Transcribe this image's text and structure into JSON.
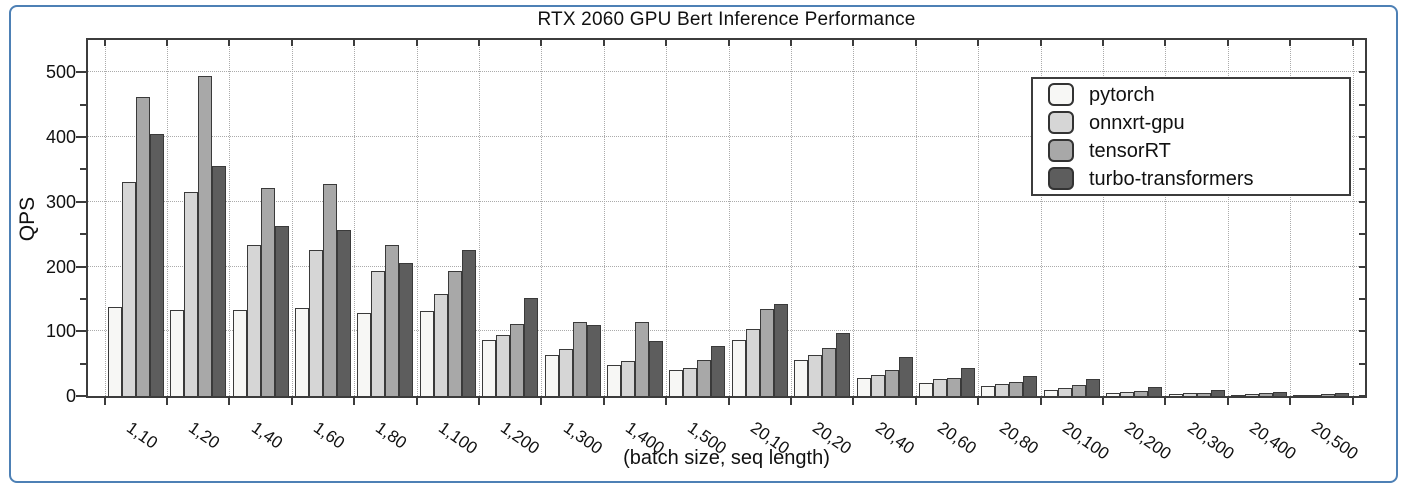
{
  "frame": {
    "border_color": "#4d80b5",
    "background": "#ffffff"
  },
  "chart_data": {
    "type": "bar",
    "title": "RTX 2060 GPU Bert Inference Performance",
    "xlabel": "(batch size, seq length)",
    "ylabel": "QPS",
    "ylim": [
      0,
      550
    ],
    "yticks": [
      0,
      100,
      200,
      300,
      400,
      500
    ],
    "yminor_step": 50,
    "grid": "dotted gray; horizontal lines at 100-unit majors, vertical lines at category boundaries",
    "legend_position": "upper right, boxed",
    "categories": [
      "1,10",
      "1,20",
      "1,40",
      "1,60",
      "1,80",
      "1,100",
      "1,200",
      "1,300",
      "1,400",
      "1,500",
      "20,10",
      "20,20",
      "20,40",
      "20,60",
      "20,80",
      "20,100",
      "20,200",
      "20,300",
      "20,400",
      "20,500"
    ],
    "series": [
      {
        "name": "pytorch",
        "color": "#f7f7f5",
        "values": [
          137,
          133,
          133,
          136,
          128,
          131,
          86,
          63,
          48,
          40,
          86,
          56,
          28,
          20,
          15,
          9,
          5,
          3,
          2,
          2
        ]
      },
      {
        "name": "onnxrt-gpu",
        "color": "#d6d6d6",
        "values": [
          330,
          315,
          233,
          226,
          193,
          157,
          95,
          73,
          54,
          44,
          103,
          63,
          33,
          26,
          18,
          13,
          6,
          4,
          3,
          2
        ]
      },
      {
        "name": "tensorRT",
        "color": "#a8a8a8",
        "values": [
          462,
          494,
          322,
          327,
          234,
          193,
          112,
          114,
          115,
          55,
          134,
          74,
          40,
          28,
          21,
          17,
          8,
          5,
          4,
          3
        ]
      },
      {
        "name": "turbo-transformers",
        "color": "#5d5d5d",
        "values": [
          405,
          355,
          263,
          256,
          206,
          225,
          151,
          110,
          85,
          77,
          142,
          98,
          61,
          43,
          31,
          26,
          14,
          9,
          6,
          4
        ]
      }
    ],
    "bar_border_color": "#3a3a3a",
    "axis_color": "#3c3c3c"
  }
}
